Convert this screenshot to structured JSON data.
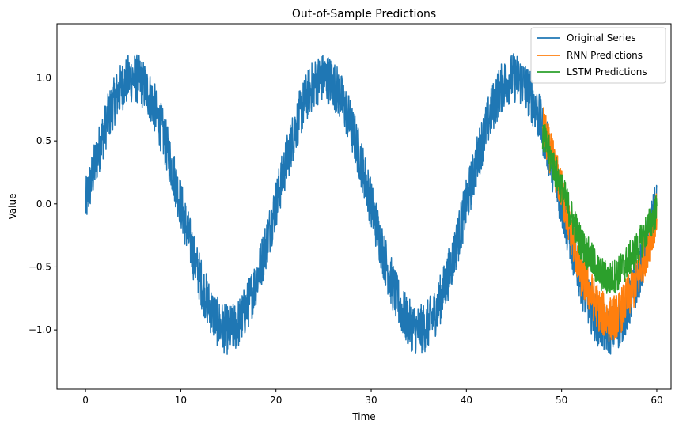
{
  "chart_data": {
    "type": "line",
    "title": "Out-of-Sample Predictions",
    "xlabel": "Time",
    "ylabel": "Value",
    "xlim": [
      -3,
      61.5
    ],
    "ylim": [
      -1.47,
      1.43
    ],
    "xticks": [
      0,
      10,
      20,
      30,
      40,
      50,
      60
    ],
    "xtick_labels": [
      "0",
      "10",
      "20",
      "30",
      "40",
      "50",
      "60"
    ],
    "yticks": [
      -1.0,
      -0.5,
      0.0,
      0.5,
      1.0
    ],
    "ytick_labels": [
      "−1.0",
      "−0.5",
      "0.0",
      "0.5",
      "1.0"
    ],
    "grid": false,
    "legend_position": "top-right",
    "series": [
      {
        "name": "Original Series",
        "color": "#1f77b4",
        "x_range": [
          0,
          60
        ],
        "noise_band": 0.2,
        "x": [
          0,
          2.5,
          5,
          7.5,
          10,
          12.5,
          15,
          17.5,
          20,
          22.5,
          25,
          27.5,
          30,
          32.5,
          35,
          37.5,
          40,
          42.5,
          45,
          47.5,
          50,
          52.5,
          55,
          57.5,
          60
        ],
        "y": [
          0.0,
          0.71,
          1.0,
          0.71,
          0.0,
          -0.71,
          -1.0,
          -0.71,
          0.0,
          0.71,
          1.0,
          0.71,
          0.0,
          -0.71,
          -1.0,
          -0.71,
          0.0,
          0.71,
          1.0,
          0.71,
          0.0,
          -0.71,
          -1.0,
          -0.71,
          0.0
        ]
      },
      {
        "name": "RNN Predictions",
        "color": "#ff7f0e",
        "x_range": [
          48,
          60
        ],
        "noise_band": 0.18,
        "x": [
          48,
          50,
          52,
          54,
          55,
          56,
          58,
          60
        ],
        "y": [
          0.62,
          0.1,
          -0.55,
          -0.85,
          -0.92,
          -0.88,
          -0.6,
          -0.08
        ]
      },
      {
        "name": "LSTM Predictions",
        "color": "#2ca02c",
        "x_range": [
          48,
          60
        ],
        "noise_band": 0.14,
        "x": [
          48,
          50,
          52,
          54,
          55,
          56,
          58,
          60
        ],
        "y": [
          0.55,
          0.12,
          -0.3,
          -0.55,
          -0.6,
          -0.55,
          -0.35,
          -0.05
        ]
      }
    ]
  }
}
